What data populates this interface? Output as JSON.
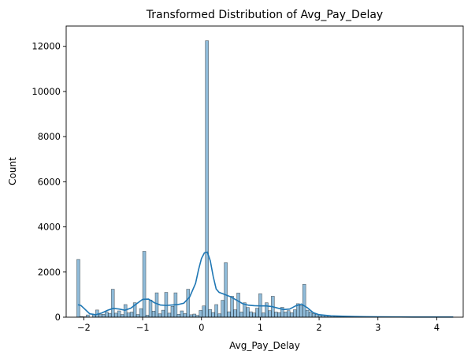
{
  "chart_data": {
    "type": "bar",
    "title": "Transformed Distribution of Avg_Pay_Delay",
    "xlabel": "Avg_Pay_Delay",
    "ylabel": "Count",
    "xlim": [
      -2.3,
      4.45
    ],
    "ylim": [
      0,
      12900
    ],
    "xticks": [
      -2,
      -1,
      0,
      1,
      2,
      3,
      4
    ],
    "yticks": [
      0,
      2000,
      4000,
      6000,
      8000,
      10000,
      12000
    ],
    "grid": false,
    "bin_width": 0.0533,
    "colors": {
      "bar": "#1f77b4",
      "kde": "#1f77b4"
    },
    "bars": [
      {
        "x": -2.093,
        "value": 2560
      },
      {
        "x": -2.04,
        "value": 30
      },
      {
        "x": -1.987,
        "value": 20
      },
      {
        "x": -1.933,
        "value": 100
      },
      {
        "x": -1.88,
        "value": 0
      },
      {
        "x": -1.827,
        "value": 110
      },
      {
        "x": -1.773,
        "value": 320
      },
      {
        "x": -1.72,
        "value": 120
      },
      {
        "x": -1.667,
        "value": 130
      },
      {
        "x": -1.613,
        "value": 240
      },
      {
        "x": -1.56,
        "value": 170
      },
      {
        "x": -1.507,
        "value": 1240
      },
      {
        "x": -1.453,
        "value": 180
      },
      {
        "x": -1.4,
        "value": 280
      },
      {
        "x": -1.347,
        "value": 120
      },
      {
        "x": -1.293,
        "value": 560
      },
      {
        "x": -1.24,
        "value": 190
      },
      {
        "x": -1.187,
        "value": 230
      },
      {
        "x": -1.133,
        "value": 640
      },
      {
        "x": -1.08,
        "value": 120
      },
      {
        "x": -1.027,
        "value": 380
      },
      {
        "x": -0.973,
        "value": 2920
      },
      {
        "x": -0.92,
        "value": 90
      },
      {
        "x": -0.867,
        "value": 760
      },
      {
        "x": -0.813,
        "value": 270
      },
      {
        "x": -0.76,
        "value": 1080
      },
      {
        "x": -0.707,
        "value": 150
      },
      {
        "x": -0.653,
        "value": 310
      },
      {
        "x": -0.6,
        "value": 1100
      },
      {
        "x": -0.547,
        "value": 180
      },
      {
        "x": -0.493,
        "value": 480
      },
      {
        "x": -0.44,
        "value": 1080
      },
      {
        "x": -0.387,
        "value": 130
      },
      {
        "x": -0.333,
        "value": 280
      },
      {
        "x": -0.28,
        "value": 160
      },
      {
        "x": -0.227,
        "value": 1240
      },
      {
        "x": -0.173,
        "value": 110
      },
      {
        "x": -0.12,
        "value": 140
      },
      {
        "x": -0.067,
        "value": 80
      },
      {
        "x": -0.013,
        "value": 300
      },
      {
        "x": 0.04,
        "value": 500
      },
      {
        "x": 0.093,
        "value": 12250
      },
      {
        "x": 0.147,
        "value": 340
      },
      {
        "x": 0.2,
        "value": 210
      },
      {
        "x": 0.253,
        "value": 560
      },
      {
        "x": 0.307,
        "value": 150
      },
      {
        "x": 0.36,
        "value": 750
      },
      {
        "x": 0.413,
        "value": 2420
      },
      {
        "x": 0.467,
        "value": 240
      },
      {
        "x": 0.52,
        "value": 930
      },
      {
        "x": 0.573,
        "value": 330
      },
      {
        "x": 0.627,
        "value": 1070
      },
      {
        "x": 0.68,
        "value": 230
      },
      {
        "x": 0.733,
        "value": 640
      },
      {
        "x": 0.787,
        "value": 430
      },
      {
        "x": 0.84,
        "value": 240
      },
      {
        "x": 0.893,
        "value": 190
      },
      {
        "x": 0.947,
        "value": 400
      },
      {
        "x": 1.0,
        "value": 1040
      },
      {
        "x": 1.053,
        "value": 190
      },
      {
        "x": 1.107,
        "value": 640
      },
      {
        "x": 1.16,
        "value": 290
      },
      {
        "x": 1.213,
        "value": 930
      },
      {
        "x": 1.267,
        "value": 230
      },
      {
        "x": 1.32,
        "value": 200
      },
      {
        "x": 1.373,
        "value": 440
      },
      {
        "x": 1.427,
        "value": 230
      },
      {
        "x": 1.48,
        "value": 290
      },
      {
        "x": 1.533,
        "value": 200
      },
      {
        "x": 1.587,
        "value": 330
      },
      {
        "x": 1.64,
        "value": 600
      },
      {
        "x": 1.693,
        "value": 510
      },
      {
        "x": 1.747,
        "value": 1460
      },
      {
        "x": 1.8,
        "value": 310
      },
      {
        "x": 1.853,
        "value": 230
      },
      {
        "x": 1.907,
        "value": 160
      },
      {
        "x": 1.96,
        "value": 130
      },
      {
        "x": 2.013,
        "value": 110
      },
      {
        "x": 2.067,
        "value": 90
      },
      {
        "x": 2.12,
        "value": 70
      },
      {
        "x": 2.173,
        "value": 60
      },
      {
        "x": 2.227,
        "value": 50
      },
      {
        "x": 2.28,
        "value": 40
      },
      {
        "x": 2.333,
        "value": 35
      },
      {
        "x": 2.387,
        "value": 30
      },
      {
        "x": 2.44,
        "value": 25
      },
      {
        "x": 2.493,
        "value": 22
      },
      {
        "x": 2.547,
        "value": 20
      },
      {
        "x": 2.6,
        "value": 40
      },
      {
        "x": 2.653,
        "value": 15
      },
      {
        "x": 2.707,
        "value": 12
      },
      {
        "x": 2.76,
        "value": 12
      },
      {
        "x": 2.813,
        "value": 10
      },
      {
        "x": 2.867,
        "value": 9
      },
      {
        "x": 2.92,
        "value": 8
      },
      {
        "x": 2.973,
        "value": 8
      },
      {
        "x": 3.027,
        "value": 7
      },
      {
        "x": 3.08,
        "value": 6
      },
      {
        "x": 3.133,
        "value": 6
      },
      {
        "x": 3.187,
        "value": 5
      },
      {
        "x": 3.24,
        "value": 5
      },
      {
        "x": 3.293,
        "value": 5
      },
      {
        "x": 3.347,
        "value": 4
      },
      {
        "x": 3.4,
        "value": 4
      },
      {
        "x": 3.453,
        "value": 20
      },
      {
        "x": 3.507,
        "value": 4
      },
      {
        "x": 3.56,
        "value": 3
      },
      {
        "x": 3.613,
        "value": 3
      },
      {
        "x": 3.667,
        "value": 3
      },
      {
        "x": 3.72,
        "value": 3
      },
      {
        "x": 3.773,
        "value": 3
      },
      {
        "x": 3.827,
        "value": 3
      },
      {
        "x": 3.88,
        "value": 3
      },
      {
        "x": 3.933,
        "value": 15
      },
      {
        "x": 3.987,
        "value": 3
      },
      {
        "x": 4.04,
        "value": 3
      },
      {
        "x": 4.093,
        "value": 3
      },
      {
        "x": 4.147,
        "value": 3
      },
      {
        "x": 4.2,
        "value": 3
      },
      {
        "x": 4.253,
        "value": 3
      }
    ],
    "kde": [
      [
        -2.1,
        550
      ],
      [
        -2.05,
        520
      ],
      [
        -2.0,
        400
      ],
      [
        -1.9,
        150
      ],
      [
        -1.8,
        110
      ],
      [
        -1.7,
        180
      ],
      [
        -1.6,
        300
      ],
      [
        -1.5,
        390
      ],
      [
        -1.4,
        360
      ],
      [
        -1.3,
        310
      ],
      [
        -1.2,
        400
      ],
      [
        -1.1,
        600
      ],
      [
        -1.0,
        790
      ],
      [
        -0.9,
        800
      ],
      [
        -0.8,
        640
      ],
      [
        -0.7,
        540
      ],
      [
        -0.6,
        520
      ],
      [
        -0.5,
        540
      ],
      [
        -0.4,
        560
      ],
      [
        -0.3,
        620
      ],
      [
        -0.2,
        900
      ],
      [
        -0.1,
        1500
      ],
      [
        -0.05,
        2100
      ],
      [
        0.0,
        2600
      ],
      [
        0.05,
        2850
      ],
      [
        0.1,
        2880
      ],
      [
        0.15,
        2500
      ],
      [
        0.2,
        1800
      ],
      [
        0.25,
        1250
      ],
      [
        0.3,
        1100
      ],
      [
        0.4,
        1000
      ],
      [
        0.5,
        900
      ],
      [
        0.6,
        750
      ],
      [
        0.7,
        600
      ],
      [
        0.8,
        530
      ],
      [
        0.9,
        510
      ],
      [
        1.0,
        500
      ],
      [
        1.1,
        500
      ],
      [
        1.2,
        470
      ],
      [
        1.3,
        400
      ],
      [
        1.4,
        340
      ],
      [
        1.5,
        360
      ],
      [
        1.6,
        500
      ],
      [
        1.7,
        580
      ],
      [
        1.8,
        420
      ],
      [
        1.9,
        200
      ],
      [
        2.0,
        110
      ],
      [
        2.2,
        60
      ],
      [
        2.4,
        40
      ],
      [
        2.6,
        30
      ],
      [
        2.8,
        20
      ],
      [
        3.0,
        15
      ],
      [
        3.3,
        10
      ],
      [
        3.6,
        8
      ],
      [
        3.9,
        8
      ],
      [
        4.1,
        6
      ],
      [
        4.28,
        5
      ]
    ]
  }
}
